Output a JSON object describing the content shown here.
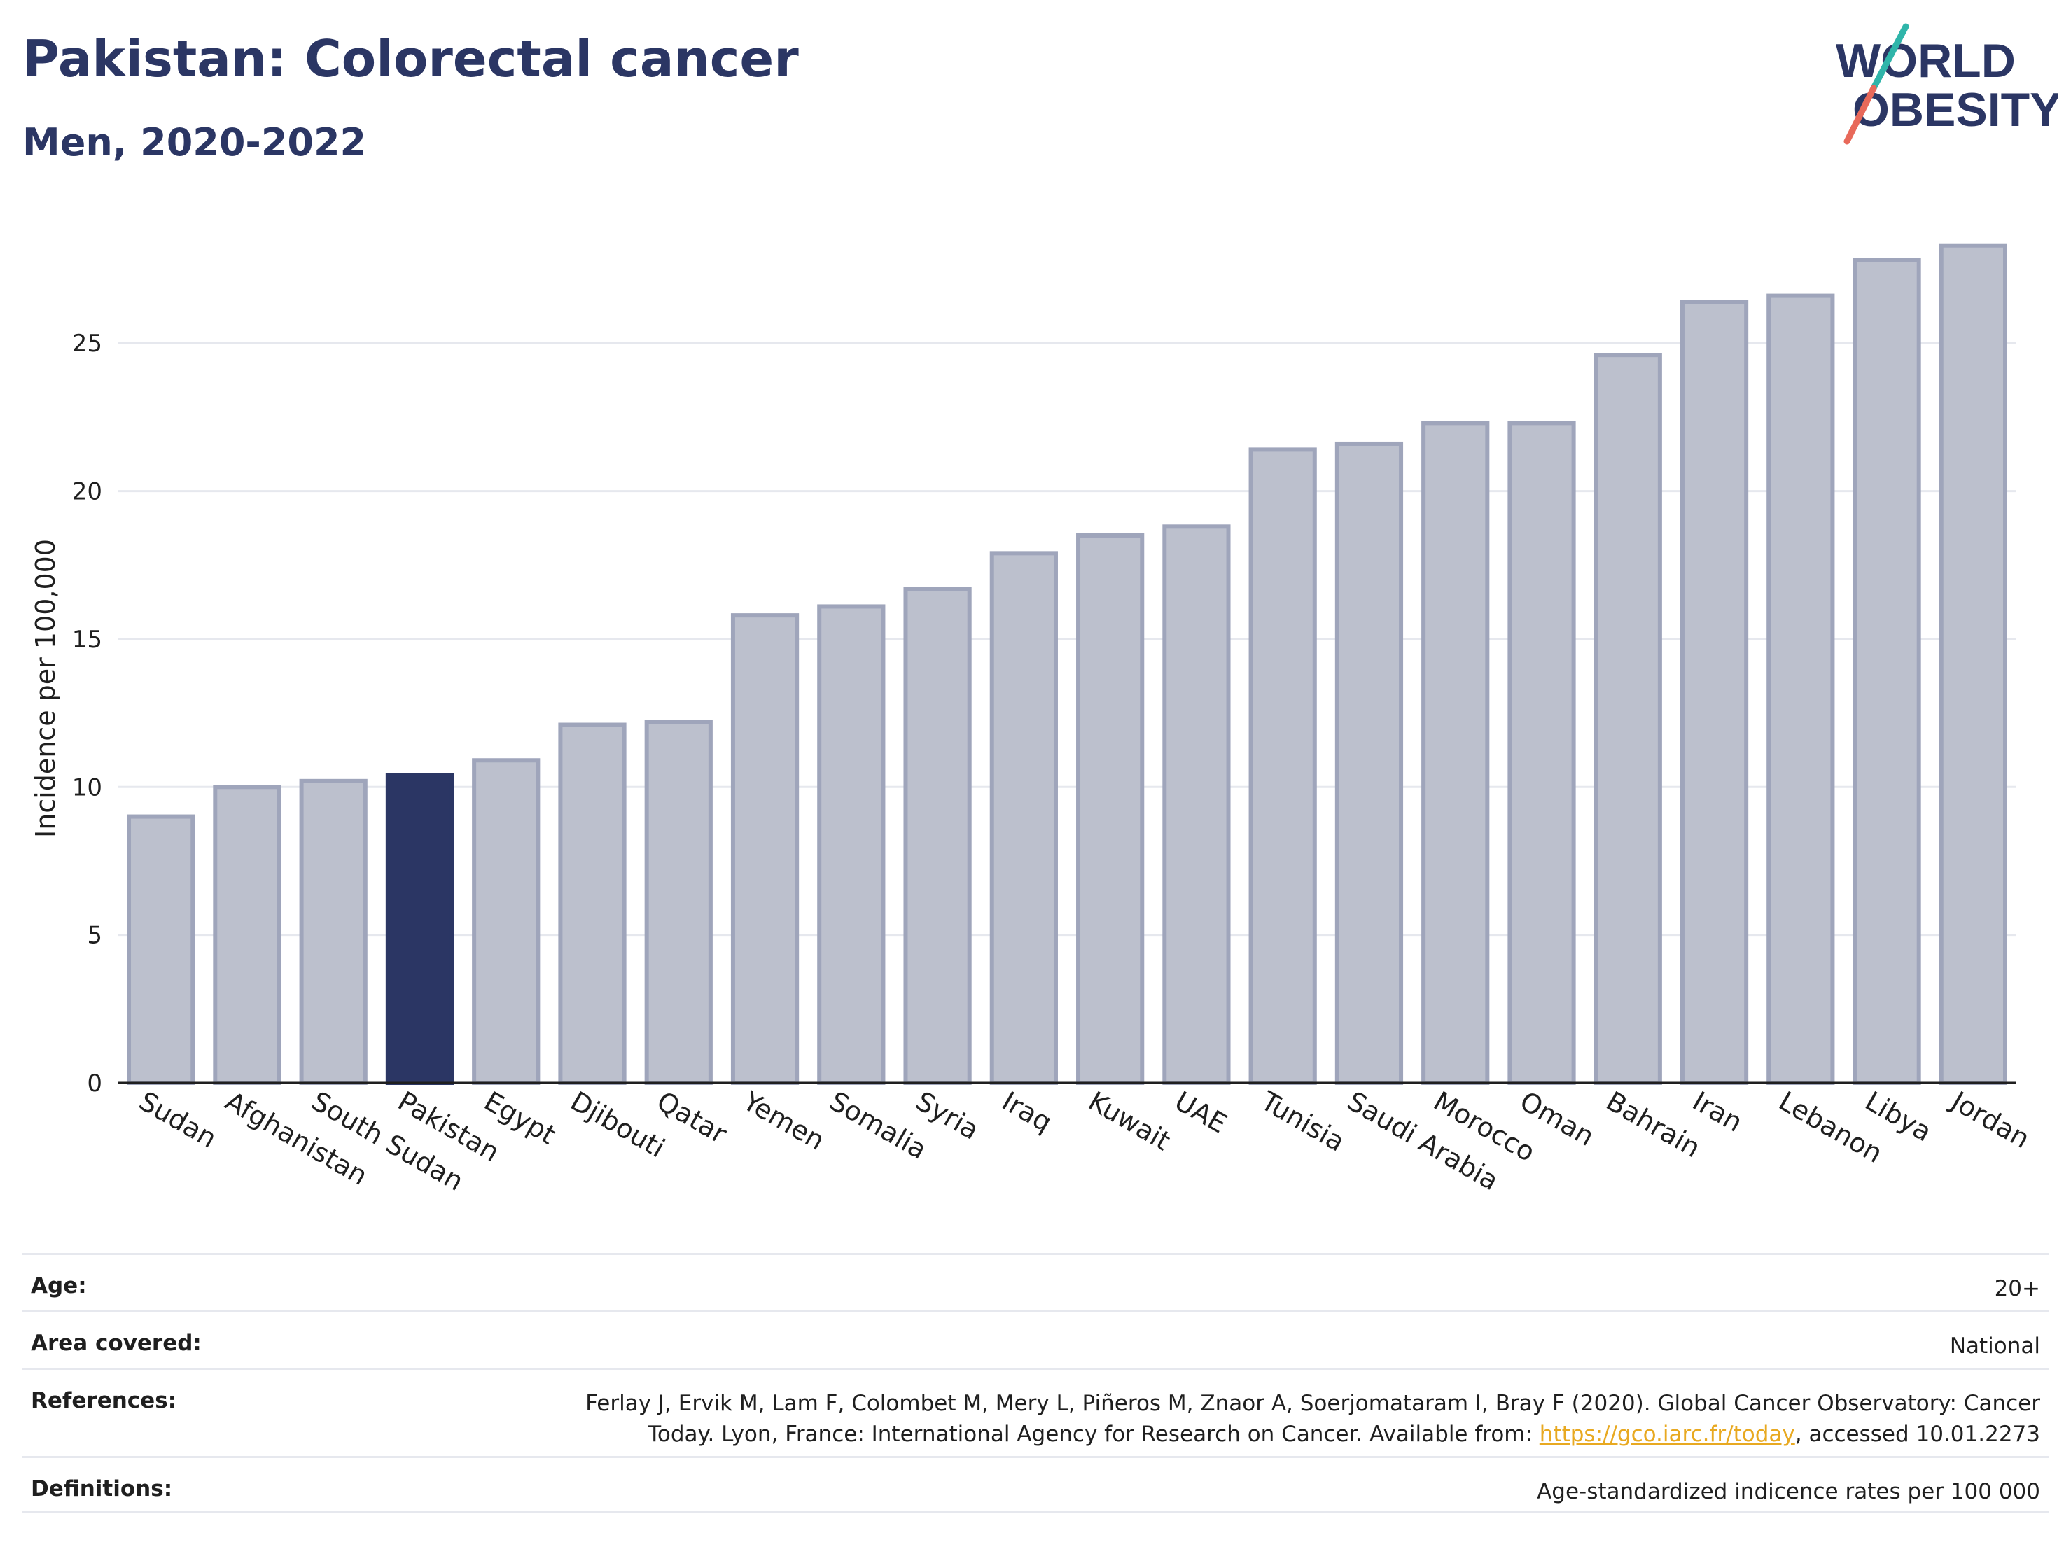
{
  "header": {
    "title": "Pakistan: Colorectal cancer",
    "subtitle": "Men, 2020-2022"
  },
  "logo": {
    "line1": "WORLD",
    "line2": "OBESITY"
  },
  "chart_data": {
    "type": "bar",
    "ylabel": "Incidence per 100,000",
    "xlabel": "",
    "ylim": [
      0,
      29.5
    ],
    "yticks": [
      0,
      5,
      10,
      15,
      20,
      25
    ],
    "grid": true,
    "highlight": "Pakistan",
    "colors": {
      "default": "#bcc0cd",
      "default_stroke": "#9fa5bb",
      "highlight": "#2b3664"
    },
    "categories": [
      "Sudan",
      "Afghanistan",
      "South Sudan",
      "Pakistan",
      "Egypt",
      "Djibouti",
      "Qatar",
      "Yemen",
      "Somalia",
      "Syria",
      "Iraq",
      "Kuwait",
      "UAE",
      "Tunisia",
      "Saudi Arabia",
      "Morocco",
      "Oman",
      "Bahrain",
      "Iran",
      "Lebanon",
      "Libya",
      "Jordan"
    ],
    "values": [
      9.0,
      10.0,
      10.2,
      10.4,
      10.9,
      12.1,
      12.2,
      15.8,
      16.1,
      16.7,
      17.9,
      18.5,
      18.8,
      21.4,
      21.6,
      22.3,
      22.3,
      24.6,
      26.4,
      26.6,
      27.8,
      28.3
    ]
  },
  "info": {
    "age_label": "Age:",
    "age_value": "20+",
    "area_label": "Area covered:",
    "area_value": "National",
    "ref_label": "References:",
    "ref_text_1": "Ferlay J, Ervik M, Lam F, Colombet M, Mery L, Piñeros M, Znaor A, Soerjomataram I, Bray F (2020). Global Cancer Observatory: Cancer",
    "ref_text_2": "Today. Lyon, France: International Agency for Research on Cancer. Available from: ",
    "ref_link": "https://gco.iarc.fr/today",
    "ref_text_3": ", accessed 10.01.2273",
    "def_label": "Definitions:",
    "def_value": "Age-standardized indicence rates per 100 000"
  }
}
